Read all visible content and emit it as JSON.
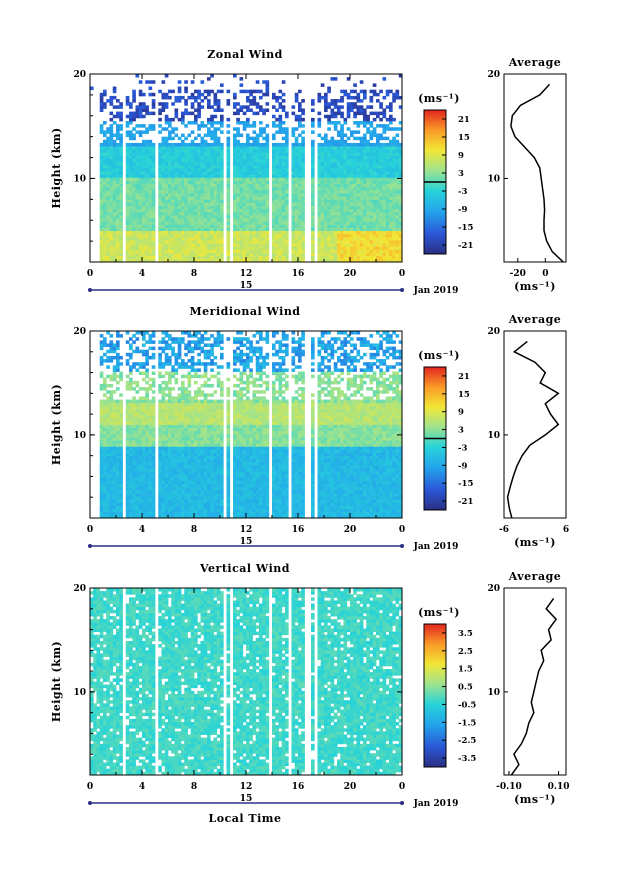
{
  "figure": {
    "x_axis_label": "Local Time",
    "date_day": "15",
    "date_label": "Jan 2019"
  },
  "chart_data": [
    {
      "type": "heatmap",
      "title": "Zonal Wind",
      "ylabel": "Height (km)",
      "xlabel": "Local Time",
      "x_ticks": [
        "0",
        "4",
        "8",
        "12",
        "16",
        "20",
        "0"
      ],
      "y_ticks": [
        "20",
        "10"
      ],
      "xlim": [
        0,
        24
      ],
      "ylim": [
        2,
        20
      ],
      "colorbar": {
        "unit": "(ms⁻¹)",
        "ticks": [
          "21",
          "15",
          "9",
          "3",
          "-3",
          "-9",
          "-15",
          "-21"
        ],
        "range": [
          -24,
          24
        ],
        "zero_line": true
      },
      "profile": {
        "title": "Average",
        "x_ticks": [
          "-20",
          "0"
        ],
        "xlim": [
          -30,
          15
        ],
        "unit": "(ms⁻¹)",
        "height_km": [
          2,
          3,
          4,
          5,
          6,
          7,
          8,
          9,
          10,
          11,
          12,
          13,
          14,
          15,
          16,
          17,
          18,
          19
        ],
        "values": [
          13,
          5,
          1,
          -1,
          -1,
          -0.5,
          -1,
          -2,
          -3,
          -4,
          -8,
          -15,
          -22,
          -25,
          -24,
          -18,
          -4,
          3
        ]
      }
    },
    {
      "type": "heatmap",
      "title": "Meridional Wind",
      "ylabel": "Height (km)",
      "xlabel": "Local Time",
      "x_ticks": [
        "0",
        "4",
        "8",
        "12",
        "16",
        "20",
        "0"
      ],
      "y_ticks": [
        "20",
        "10"
      ],
      "xlim": [
        0,
        24
      ],
      "ylim": [
        2,
        20
      ],
      "colorbar": {
        "unit": "(ms⁻¹)",
        "ticks": [
          "21",
          "15",
          "9",
          "3",
          "-3",
          "-9",
          "-15",
          "-21"
        ],
        "range": [
          -24,
          24
        ],
        "zero_line": true
      },
      "profile": {
        "title": "Average",
        "x_ticks": [
          "-6",
          "6"
        ],
        "xlim": [
          -6,
          6
        ],
        "unit": "(ms⁻¹)",
        "height_km": [
          2,
          3,
          4,
          5,
          6,
          7,
          8,
          9,
          10,
          11,
          12,
          13,
          14,
          15,
          16,
          17,
          18,
          19
        ],
        "values": [
          -4.5,
          -5,
          -5.3,
          -4.8,
          -4.2,
          -3.5,
          -2.5,
          -1,
          2,
          4.5,
          3,
          2,
          4.5,
          1,
          2,
          0,
          -4,
          -1.5
        ]
      }
    },
    {
      "type": "heatmap",
      "title": "Vertical Wind",
      "ylabel": "Height (km)",
      "xlabel": "Local Time",
      "x_ticks": [
        "0",
        "4",
        "8",
        "12",
        "16",
        "20",
        "0"
      ],
      "y_ticks": [
        "20",
        "10"
      ],
      "xlim": [
        0,
        24
      ],
      "ylim": [
        2,
        20
      ],
      "colorbar": {
        "unit": "(ms⁻¹)",
        "ticks": [
          "3.5",
          "2.5",
          "1.5",
          "0.5",
          "-0.5",
          "-1.5",
          "-2.5",
          "-3.5"
        ],
        "range": [
          -4,
          4
        ],
        "zero_line": false
      },
      "profile": {
        "title": "Average",
        "x_ticks": [
          "-0.10",
          "0.10"
        ],
        "xlim": [
          -0.12,
          0.13
        ],
        "unit": "(ms⁻¹)",
        "height_km": [
          2,
          3,
          4,
          5,
          6,
          7,
          8,
          9,
          10,
          11,
          12,
          13,
          14,
          15,
          16,
          17,
          18,
          19
        ],
        "values": [
          -0.09,
          -0.06,
          -0.08,
          -0.05,
          -0.03,
          -0.02,
          0.0,
          -0.01,
          0.0,
          0.01,
          0.02,
          0.04,
          0.03,
          0.07,
          0.06,
          0.09,
          0.05,
          0.08
        ]
      }
    }
  ]
}
